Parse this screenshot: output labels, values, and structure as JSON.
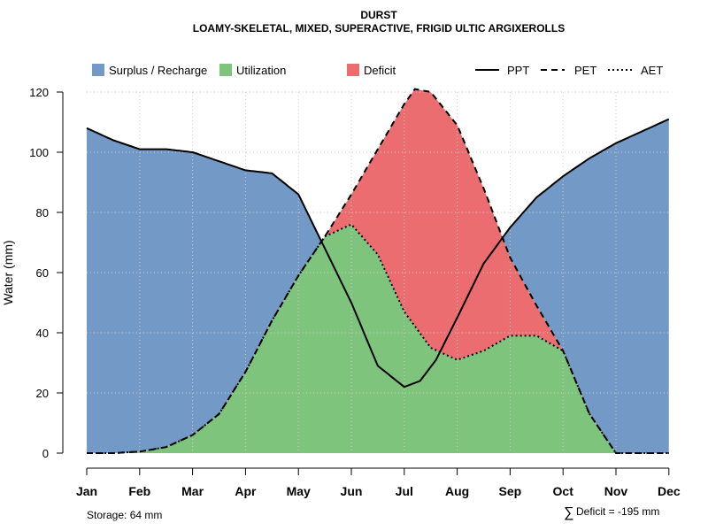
{
  "chart_data": {
    "type": "area",
    "title": "DURST",
    "subtitle": "LOAMY-SKELETAL, MIXED, SUPERACTIVE, FRIGID ULTIC ARGIXEROLLS",
    "xlabel": "",
    "ylabel": "Water (mm)",
    "ylim": [
      0,
      120
    ],
    "yticks": [
      "0",
      "20",
      "40",
      "60",
      "80",
      "100",
      "120"
    ],
    "grid": true,
    "legend_position": "top",
    "categories": [
      "Jan",
      "Feb",
      "Mar",
      "Apr",
      "May",
      "Jun",
      "Jul",
      "Aug",
      "Sep",
      "Oct",
      "Nov",
      "Dec"
    ],
    "series": [
      {
        "name": "PPT",
        "style": "solid",
        "x": [
          1,
          1.5,
          2,
          2.5,
          3,
          3.5,
          4,
          4.5,
          5,
          5.5,
          6,
          6.5,
          7,
          7.3,
          7.6,
          8,
          8.5,
          9,
          9.5,
          10,
          10.5,
          11,
          11.5,
          12
        ],
        "values": [
          108,
          104,
          101,
          101,
          100,
          97,
          94,
          93,
          86,
          68,
          50,
          29,
          22,
          24,
          31,
          45,
          63,
          75,
          85,
          92,
          98,
          103,
          107,
          111
        ]
      },
      {
        "name": "PET",
        "style": "dashed",
        "x": [
          1,
          1.5,
          2,
          2.5,
          3,
          3.5,
          4,
          4.5,
          5,
          5.5,
          6,
          6.5,
          7,
          7.2,
          7.5,
          8,
          8.5,
          9,
          9.5,
          10,
          10.5,
          11,
          11.5,
          12
        ],
        "values": [
          0,
          0,
          0.5,
          2,
          6,
          13,
          27,
          44,
          59,
          72,
          86,
          101,
          116,
          121,
          120,
          109,
          88,
          65,
          49,
          34,
          13,
          0,
          0,
          0
        ]
      },
      {
        "name": "AET",
        "style": "dotted",
        "x": [
          1,
          1.5,
          2,
          2.5,
          3,
          3.5,
          4,
          4.5,
          5,
          5.5,
          6,
          6.5,
          7,
          7.5,
          8,
          8.5,
          9,
          9.5,
          10,
          10.5,
          11,
          11.5,
          12
        ],
        "values": [
          0,
          0,
          0.5,
          2,
          6,
          13,
          27,
          44,
          59,
          72,
          76,
          66,
          47,
          35,
          31,
          34,
          39,
          39,
          34,
          13,
          0,
          0,
          0
        ]
      }
    ],
    "legend": [
      "Surplus / Recharge",
      "Utilization",
      "Deficit",
      "PPT",
      "PET",
      "AET"
    ],
    "annotations": {
      "storage": "Storage: 64 mm",
      "deficit": "Deficit = -195 mm",
      "deficit_symbol": "∑"
    },
    "colors": {
      "surplus": "#7399c6",
      "utilization": "#7fc47c",
      "deficit": "#eb6d6f",
      "grid": "#cccccc",
      "line": "#000000"
    }
  }
}
